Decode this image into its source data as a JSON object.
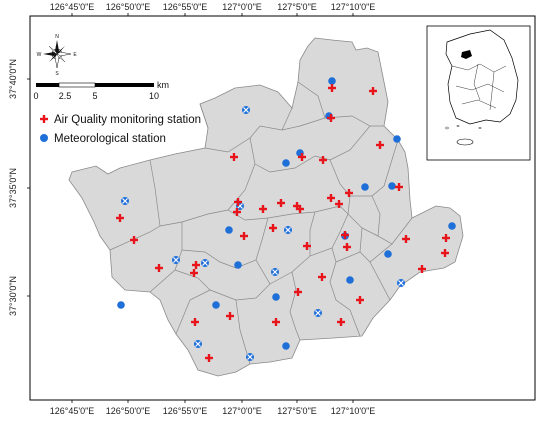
{
  "axes": {
    "top_labels": [
      "126°45'0\"E",
      "126°50'0\"E",
      "126°55'0\"E",
      "127°0'0\"E",
      "127°5'0\"E",
      "127°10'0\"E"
    ],
    "bottom_labels": [
      "126°45'0\"E",
      "126°50'0\"E",
      "126°55'0\"E",
      "127°0'0\"E",
      "127°5'0\"E",
      "127°10'0\"E"
    ],
    "left_labels": [
      "37°40'0\"N",
      "37°35'0\"N",
      "37°30'0\"N"
    ]
  },
  "legend": {
    "air_quality_label": "Air Quality monitoring station",
    "meteorological_label": "Meteorological station",
    "air_quality_color": "#e8141c",
    "meteorological_color": "#1f6fd8"
  },
  "scale_bar": {
    "labels": [
      "0",
      "2.5",
      "5",
      "10"
    ],
    "unit": "km"
  },
  "compass": {
    "n": "N",
    "s": "S",
    "e": "E",
    "w": "W"
  },
  "colors": {
    "land": "#d9d9d9",
    "boundary": "#8a8a8a",
    "frame": "#000000"
  }
}
